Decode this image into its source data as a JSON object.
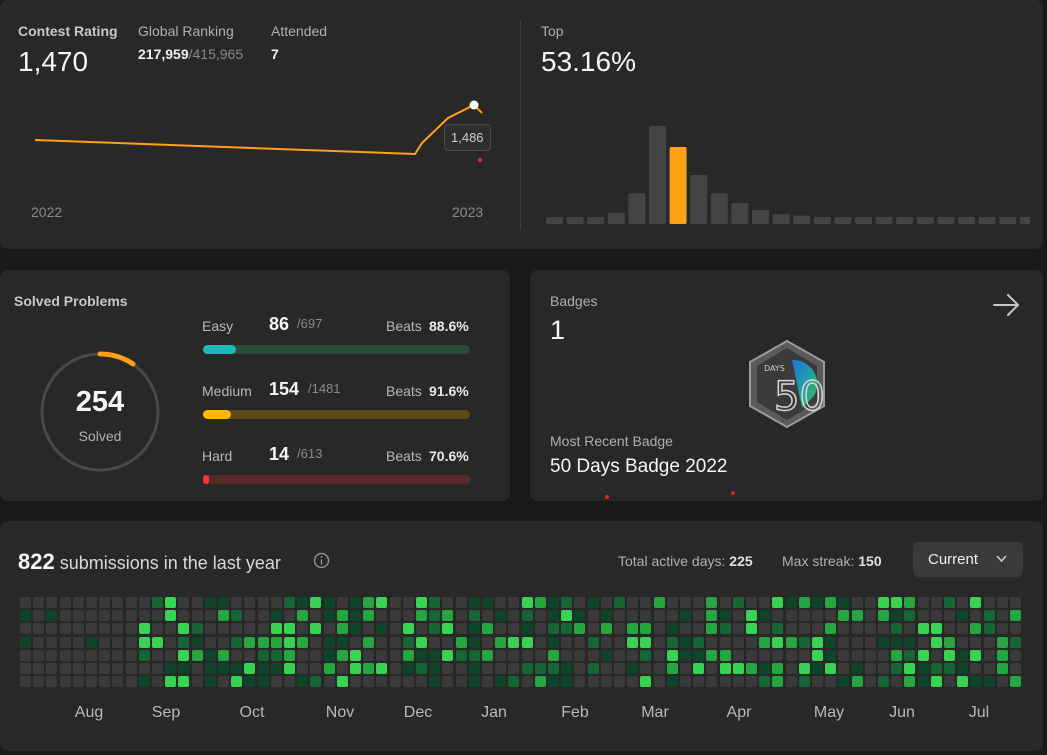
{
  "contest": {
    "rating_label": "Contest Rating",
    "rating_value": "1,470",
    "global_label": "Global Ranking",
    "global_rank": "217,959",
    "global_total": "/415,965",
    "attended_label": "Attended",
    "attended_value": "7",
    "x_start": "2022",
    "x_end": "2023",
    "tooltip": "1,486",
    "top_label": "Top",
    "top_value": "53.16%",
    "line_color": "#ffa116",
    "histogram": [
      5,
      5,
      5,
      8,
      22,
      70,
      55,
      35,
      22,
      15,
      10,
      7,
      6,
      5,
      5,
      5,
      5,
      5,
      5,
      5,
      5,
      5,
      5,
      5
    ],
    "highlight_index": 6
  },
  "solved": {
    "title": "Solved Problems",
    "total": "254",
    "total_label": "Solved",
    "rows": [
      {
        "label": "Easy",
        "count": "86",
        "total": "/697",
        "beats_label": "Beats",
        "beats": "88.6%",
        "fill": 0.123,
        "color": "#1cbaba",
        "track": "#2a4a3a"
      },
      {
        "label": "Medium",
        "count": "154",
        "total": "/1481",
        "beats_label": "Beats",
        "beats": "91.6%",
        "fill": 0.104,
        "color": "#ffb700",
        "track": "#5a4a1a"
      },
      {
        "label": "Hard",
        "count": "14",
        "total": "/613",
        "beats_label": "Beats",
        "beats": "70.6%",
        "fill": 0.023,
        "color": "#f63737",
        "track": "#5a2a2a"
      }
    ]
  },
  "badges": {
    "title": "Badges",
    "count": "1",
    "recent_label": "Most Recent Badge",
    "recent_name": "50 Days Badge 2022",
    "badge_text": "DAYS",
    "badge_number": "50"
  },
  "submissions": {
    "count": "822",
    "text": "submissions in the last year",
    "active_label": "Total active days:",
    "active_value": "225",
    "streak_label": "Max streak:",
    "streak_value": "150",
    "dropdown_label": "Current",
    "months": [
      "Aug",
      "Sep",
      "Oct",
      "Nov",
      "Dec",
      "Jan",
      "Feb",
      "Mar",
      "Apr",
      "May",
      "Jun",
      "Jul"
    ]
  }
}
